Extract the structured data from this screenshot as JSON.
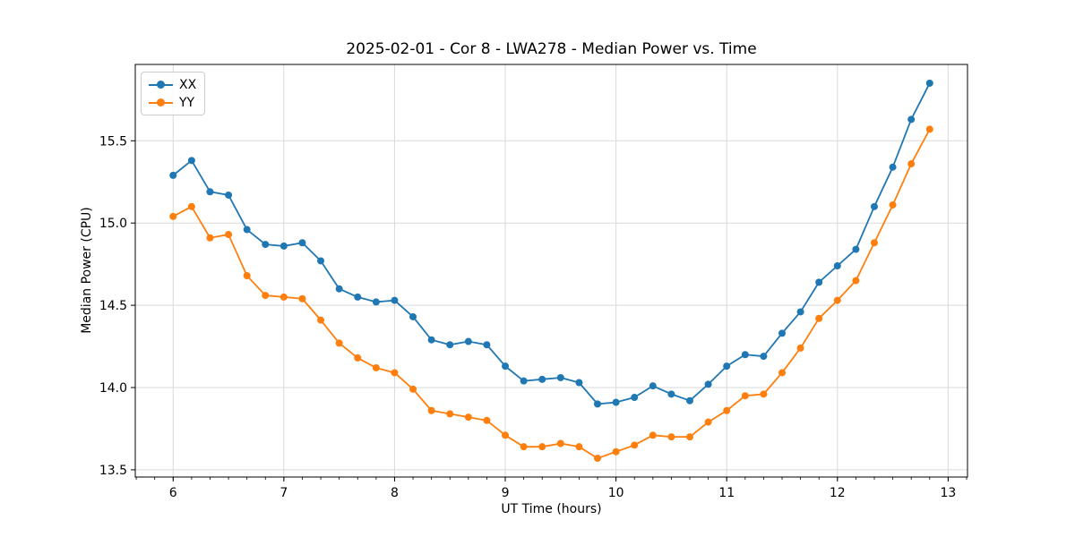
{
  "chart_data": {
    "type": "line",
    "title": "2025-02-01 - Cor 8 - LWA278 - Median Power vs. Time",
    "xlabel": "UT Time (hours)",
    "ylabel": "Median Power (CPU)",
    "xlim": [
      5.658,
      13.175
    ],
    "ylim": [
      13.456,
      15.964
    ],
    "grid": true,
    "legend_position": "upper left",
    "x_minor_tick_step": 0.16667,
    "xticks": {
      "values": [
        6,
        7,
        8,
        9,
        10,
        11,
        12,
        13
      ],
      "labels": [
        "6",
        "7",
        "8",
        "9",
        "10",
        "11",
        "12",
        "13"
      ]
    },
    "yticks": {
      "values": [
        13.5,
        14.0,
        14.5,
        15.0,
        15.5
      ],
      "labels": [
        "13.5",
        "14.0",
        "14.5",
        "15.0",
        "15.5"
      ]
    },
    "x": [
      6.0,
      6.1667,
      6.3333,
      6.5,
      6.6667,
      6.8333,
      7.0,
      7.1667,
      7.3333,
      7.5,
      7.6667,
      7.8333,
      8.0,
      8.1667,
      8.3333,
      8.5,
      8.6667,
      8.8333,
      9.0,
      9.1667,
      9.3333,
      9.5,
      9.6667,
      9.8333,
      10.0,
      10.1667,
      10.3333,
      10.5,
      10.6667,
      10.8333,
      11.0,
      11.1667,
      11.3333,
      11.5,
      11.6667,
      11.8333,
      12.0,
      12.1667,
      12.3333,
      12.5,
      12.6667,
      12.8333
    ],
    "series": [
      {
        "name": "XX",
        "color": "#1f77b4",
        "values": [
          15.29,
          15.38,
          15.19,
          15.17,
          14.96,
          14.87,
          14.86,
          14.88,
          14.77,
          14.6,
          14.55,
          14.52,
          14.53,
          14.43,
          14.29,
          14.26,
          14.28,
          14.26,
          14.13,
          14.04,
          14.05,
          14.06,
          14.03,
          13.9,
          13.91,
          13.94,
          14.01,
          13.96,
          13.92,
          14.02,
          14.13,
          14.2,
          14.19,
          14.33,
          14.46,
          14.64,
          14.74,
          14.84,
          15.1,
          15.34,
          15.63,
          15.85
        ]
      },
      {
        "name": "YY",
        "color": "#ff7f0e",
        "values": [
          15.04,
          15.1,
          14.91,
          14.93,
          14.68,
          14.56,
          14.55,
          14.54,
          14.41,
          14.27,
          14.18,
          14.12,
          14.09,
          13.99,
          13.86,
          13.84,
          13.82,
          13.8,
          13.71,
          13.64,
          13.64,
          13.66,
          13.64,
          13.57,
          13.61,
          13.65,
          13.71,
          13.7,
          13.7,
          13.79,
          13.86,
          13.95,
          13.96,
          14.09,
          14.24,
          14.42,
          14.53,
          14.65,
          14.88,
          15.11,
          15.36,
          15.57
        ]
      }
    ]
  }
}
